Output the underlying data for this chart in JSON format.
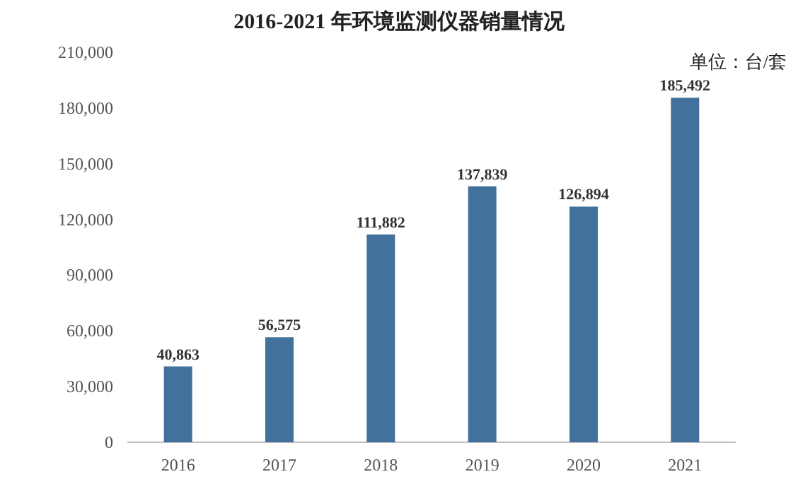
{
  "chart_data": {
    "type": "bar",
    "title": "2016-2021 年环境监测仪器销量情况",
    "annotations": [
      "单位：台/套"
    ],
    "categories": [
      "2016",
      "2017",
      "2018",
      "2019",
      "2020",
      "2021"
    ],
    "values": [
      40863,
      56575,
      111882,
      137839,
      126894,
      185492
    ],
    "color": "#41719c",
    "ylim": [
      0,
      210000
    ],
    "yticks": [
      {
        "value": 0,
        "label": "0"
      },
      {
        "value": 30000,
        "label": "30,000"
      },
      {
        "value": 60000,
        "label": "60,000"
      },
      {
        "value": 90000,
        "label": "90,000"
      },
      {
        "value": 120000,
        "label": "120,000"
      },
      {
        "value": 150000,
        "label": "150,000"
      },
      {
        "value": 180000,
        "label": "180,000"
      },
      {
        "value": 210000,
        "label": "210,000"
      }
    ],
    "value_labels": [
      "40,863",
      "56,575",
      "111,882",
      "137,839",
      "126,894",
      "185,492"
    ]
  }
}
